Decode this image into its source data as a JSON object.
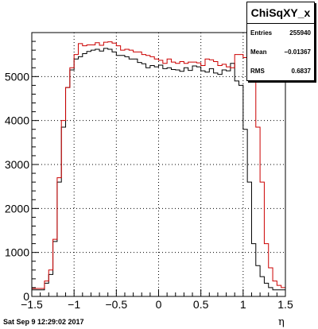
{
  "footer": {
    "date": "Sat Sep  9 12:29:02 2017"
  },
  "stats": {
    "title": "ChiSqXY_x",
    "entries_label": "Entries",
    "entries_value": "255940",
    "mean_label": "Mean",
    "mean_value": "−0.01367",
    "rms_label": "RMS",
    "rms_value": "0.6837"
  },
  "chart_data": {
    "type": "line",
    "title": "",
    "xlabel": "η",
    "ylabel": "",
    "xlim": [
      -1.5,
      1.5
    ],
    "ylim": [
      0,
      6000
    ],
    "grid": true,
    "xticks": [
      -1.5,
      -1,
      -0.5,
      0,
      0.5,
      1,
      1.5
    ],
    "xtick_labels": [
      "−1.5",
      "−1",
      "−0.5",
      "0",
      "0.5",
      "1",
      "1.5"
    ],
    "yticks": [
      0,
      1000,
      2000,
      3000,
      4000,
      5000
    ],
    "ytick_labels": [
      "0",
      "1000",
      "2000",
      "3000",
      "4000",
      "5000"
    ],
    "bin_edges_start": -1.5,
    "bin_width": 0.05,
    "series": [
      {
        "color": "#000000",
        "values": [
          150,
          150,
          150,
          300,
          500,
          1250,
          2600,
          3850,
          4750,
          5150,
          5400,
          5450,
          5520,
          5570,
          5600,
          5620,
          5580,
          5640,
          5620,
          5560,
          5480,
          5480,
          5450,
          5400,
          5400,
          5320,
          5290,
          5200,
          5250,
          5220,
          5260,
          5180,
          5200,
          5160,
          5150,
          5120,
          5200,
          5140,
          5240,
          5220,
          5130,
          5100,
          5180,
          5080,
          5050,
          5150,
          5130,
          5300,
          4900,
          4800,
          3800,
          2600,
          1200,
          700,
          450,
          300,
          200,
          150,
          150,
          150
        ]
      },
      {
        "color": "#cc0000",
        "values": [
          180,
          180,
          180,
          350,
          600,
          1300,
          2700,
          4000,
          4750,
          5200,
          5500,
          5750,
          5700,
          5720,
          5720,
          5770,
          5710,
          5780,
          5790,
          5760,
          5700,
          5600,
          5620,
          5600,
          5560,
          5560,
          5500,
          5480,
          5450,
          5400,
          5370,
          5300,
          5400,
          5330,
          5300,
          5340,
          5300,
          5330,
          5330,
          5310,
          5250,
          5400,
          5380,
          5340,
          5250,
          5280,
          5220,
          5200,
          5500,
          5500,
          5430,
          5440,
          5500,
          3850,
          2600,
          1200,
          650,
          350,
          250,
          200
        ]
      }
    ]
  }
}
